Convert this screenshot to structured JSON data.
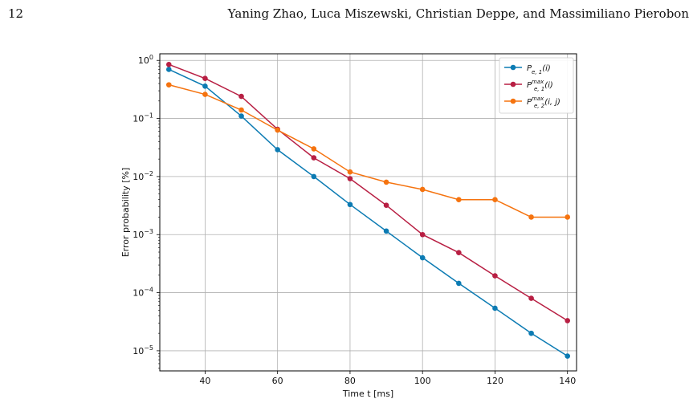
{
  "page": {
    "number": "12",
    "running_head": "Yaning Zhao, Luca Miszewski, Christian Deppe, and Massimiliano Pierobon"
  },
  "chart_data": {
    "type": "line",
    "title": "",
    "xlabel": "Time t [ms]",
    "ylabel": "Error probability [%]",
    "yscale": "log",
    "xlim": [
      27.5,
      142.5
    ],
    "ylim": [
      4.5e-06,
      1.3
    ],
    "grid": true,
    "legend_position": "top-right",
    "x": [
      30,
      40,
      50,
      60,
      70,
      80,
      90,
      100,
      110,
      120,
      130,
      140
    ],
    "x_ticks": [
      40,
      60,
      80,
      100,
      120,
      140
    ],
    "x_tick_labels": [
      "40",
      "60",
      "80",
      "100",
      "120",
      "140"
    ],
    "y_ticks": [
      1,
      0.1,
      0.01,
      0.001,
      0.0001,
      1e-05
    ],
    "y_tick_labels": [
      {
        "base": "10",
        "exp": "0"
      },
      {
        "base": "10",
        "exp": "−1"
      },
      {
        "base": "10",
        "exp": "−2"
      },
      {
        "base": "10",
        "exp": "−3"
      },
      {
        "base": "10",
        "exp": "−4"
      },
      {
        "base": "10",
        "exp": "−5"
      }
    ],
    "series": [
      {
        "key": "pe1",
        "name": "P_{e,1}(i)",
        "legend": {
          "base": "P",
          "sub": "e, 1",
          "sup": "",
          "arg": "(i)"
        },
        "color": "#0c7bb3",
        "values": [
          0.7,
          0.36,
          0.11,
          0.029,
          0.01,
          0.0033,
          0.00115,
          0.0004,
          0.000145,
          5.4e-05,
          2e-05,
          8.1e-06
        ]
      },
      {
        "key": "pe1max",
        "name": "P_{e,1}^{max}(i)",
        "legend": {
          "base": "P",
          "sub": "e, 1",
          "sup": "max",
          "arg": "(i)"
        },
        "color": "#b81f43",
        "values": [
          0.85,
          0.49,
          0.24,
          0.065,
          0.021,
          0.0092,
          0.0032,
          0.001,
          0.00049,
          0.000195,
          8e-05,
          3.3e-05
        ]
      },
      {
        "key": "pe2max",
        "name": "P_{e,2}^{max}(i, j)",
        "legend": {
          "base": "P",
          "sub": "e, 2",
          "sup": "max",
          "arg": "(i, j)"
        },
        "color": "#f5730f",
        "values": [
          0.38,
          0.26,
          0.14,
          0.063,
          0.03,
          0.012,
          0.008,
          0.006,
          0.004,
          0.004,
          0.002,
          0.002
        ]
      }
    ]
  }
}
